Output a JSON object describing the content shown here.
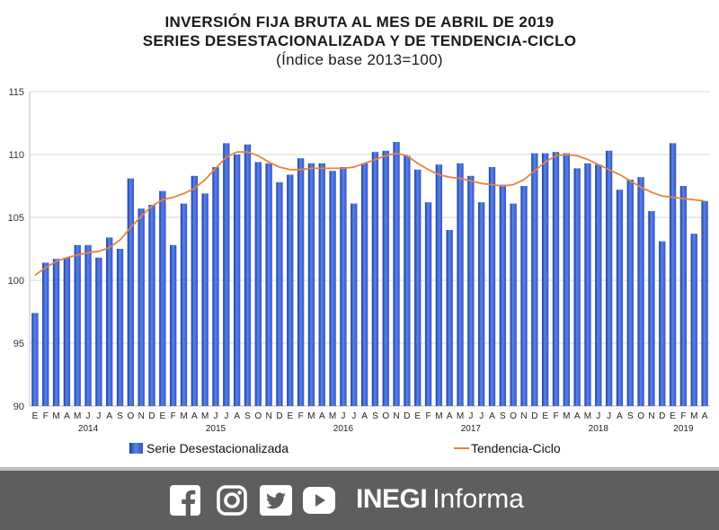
{
  "titles": {
    "line1": "INVERSIÓN FIJA BRUTA AL MES DE ABRIL DE 2019",
    "line2": "SERIES DESESTACIONALIZADA Y DE TENDENCIA-CICLO",
    "line3": "(Índice base 2013=100)"
  },
  "colors": {
    "bar": "#2f57c8",
    "bar_dark": "#1c3aa0",
    "bar_light": "#5b83e6",
    "trend": "#e8843d",
    "gridline": "#d9d9d9",
    "footer_bg": "#5e5e5e"
  },
  "footer": {
    "icons": [
      "facebook-icon",
      "instagram-icon",
      "twitter-icon",
      "youtube-icon"
    ],
    "brand_bold": "INEGI",
    "brand_light": "Informa"
  },
  "chart_data": {
    "type": "bar",
    "ylim": [
      90,
      115
    ],
    "yticks": [
      90,
      95,
      100,
      105,
      110,
      115
    ],
    "grid": true,
    "legend_position": "bottom",
    "month_labels": [
      "E",
      "F",
      "M",
      "A",
      "M",
      "J",
      "J",
      "A",
      "S",
      "O",
      "N",
      "D",
      "E",
      "F",
      "M",
      "A",
      "M",
      "J",
      "J",
      "A",
      "S",
      "O",
      "N",
      "D",
      "E",
      "F",
      "M",
      "A",
      "M",
      "J",
      "J",
      "A",
      "S",
      "O",
      "N",
      "D",
      "E",
      "F",
      "M",
      "A",
      "M",
      "J",
      "J",
      "A",
      "S",
      "O",
      "N",
      "D",
      "E",
      "F",
      "M",
      "A",
      "M",
      "J",
      "J",
      "A",
      "S",
      "O",
      "N",
      "D",
      "E",
      "F",
      "M",
      "A"
    ],
    "year_labels": [
      {
        "label": "2014",
        "index": 5
      },
      {
        "label": "2015",
        "index": 17
      },
      {
        "label": "2016",
        "index": 29
      },
      {
        "label": "2017",
        "index": 41
      },
      {
        "label": "2018",
        "index": 53
      },
      {
        "label": "2019",
        "index": 61
      }
    ],
    "series": [
      {
        "name": "Serie Desestacionalizada",
        "kind": "bar",
        "values": [
          97.4,
          101.4,
          101.7,
          101.8,
          102.8,
          102.8,
          101.8,
          103.4,
          102.5,
          108.1,
          105.7,
          106.0,
          107.1,
          102.8,
          106.1,
          108.3,
          106.9,
          109.0,
          110.9,
          110.0,
          110.8,
          109.4,
          109.3,
          107.8,
          108.4,
          109.7,
          109.3,
          109.3,
          108.7,
          109.0,
          106.1,
          109.3,
          110.2,
          110.3,
          111.0,
          109.9,
          108.8,
          106.2,
          109.2,
          104.0,
          109.3,
          108.3,
          106.2,
          109.0,
          107.6,
          106.1,
          107.5,
          110.1,
          110.1,
          110.2,
          110.1,
          108.9,
          109.3,
          109.2,
          110.3,
          107.2,
          108.0,
          108.2,
          105.5,
          103.1,
          110.9,
          107.5,
          103.7,
          106.3
        ]
      },
      {
        "name": "Tendencia-Ciclo",
        "kind": "line",
        "values": [
          100.4,
          101.0,
          101.5,
          101.8,
          102.0,
          102.2,
          102.3,
          102.6,
          103.2,
          104.2,
          105.1,
          105.9,
          106.4,
          106.6,
          106.9,
          107.3,
          108.0,
          108.9,
          109.8,
          110.2,
          110.2,
          109.9,
          109.4,
          109.0,
          108.8,
          108.8,
          108.9,
          108.9,
          108.9,
          108.9,
          109.0,
          109.3,
          109.6,
          109.9,
          110.1,
          109.9,
          109.3,
          108.8,
          108.4,
          108.2,
          108.1,
          107.9,
          107.7,
          107.6,
          107.5,
          107.6,
          108.0,
          108.7,
          109.4,
          109.9,
          110.0,
          109.9,
          109.6,
          109.2,
          108.8,
          108.4,
          107.9,
          107.4,
          107.0,
          106.7,
          106.6,
          106.5,
          106.4,
          106.3
        ]
      }
    ]
  }
}
